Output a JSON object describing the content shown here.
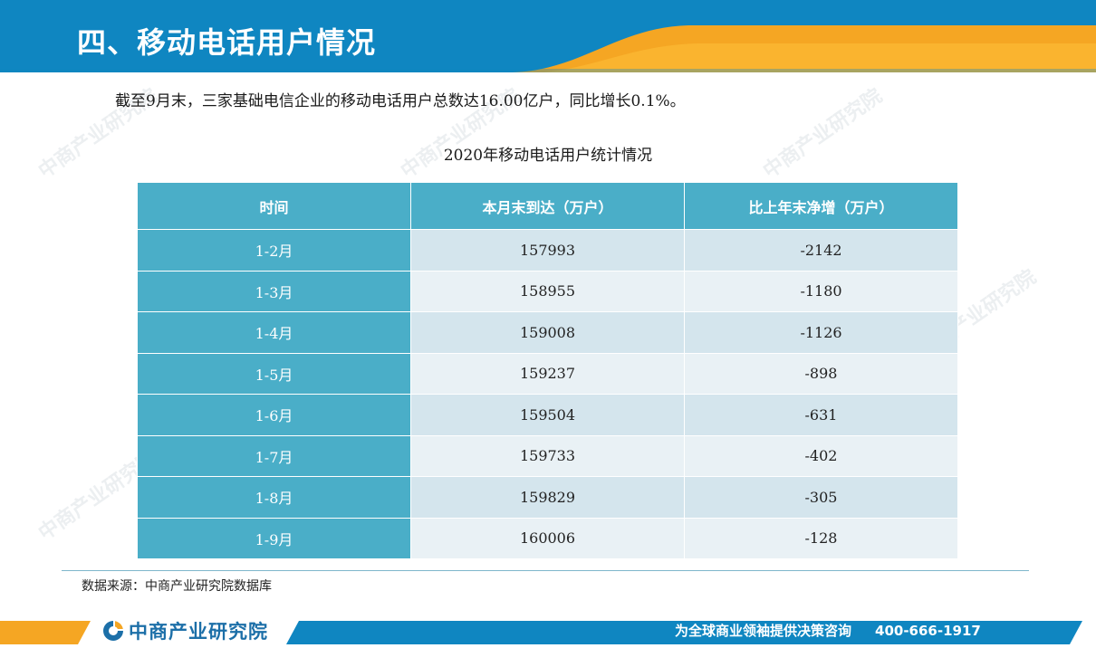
{
  "header": {
    "title": "四、移动电话用户情况",
    "accent_color": "#f5a623",
    "band_color": "#0f86c1"
  },
  "intro": "截至9月末，三家基础电信企业的移动电话用户总数达16.00亿户，同比增长0.1%。",
  "table": {
    "title": "2020年移动电话用户统计情况",
    "headers": [
      "时间",
      "本月末到达（万户）",
      "比上年末净增（万户）"
    ],
    "rows": [
      {
        "time": "1-2月",
        "total": "157993",
        "increase": "-2142"
      },
      {
        "time": "1-3月",
        "total": "158955",
        "increase": "-1180"
      },
      {
        "time": "1-4月",
        "total": "159008",
        "increase": "-1126"
      },
      {
        "time": "1-5月",
        "total": "159237",
        "increase": "-898"
      },
      {
        "time": "1-6月",
        "total": "159504",
        "increase": "-631"
      },
      {
        "time": "1-7月",
        "total": "159733",
        "increase": "-402"
      },
      {
        "time": "1-8月",
        "total": "159829",
        "increase": "-305"
      },
      {
        "time": "1-9月",
        "total": "160006",
        "increase": "-128"
      }
    ]
  },
  "source": "数据来源：中商产业研究院数据库",
  "footer": {
    "logo_text": "中商产业研究院",
    "logo_icon": "askci-logo-icon",
    "slogan": "为全球商业领袖提供决策咨询",
    "phone": "400-666-1917"
  },
  "watermark": "中商产业研究院"
}
